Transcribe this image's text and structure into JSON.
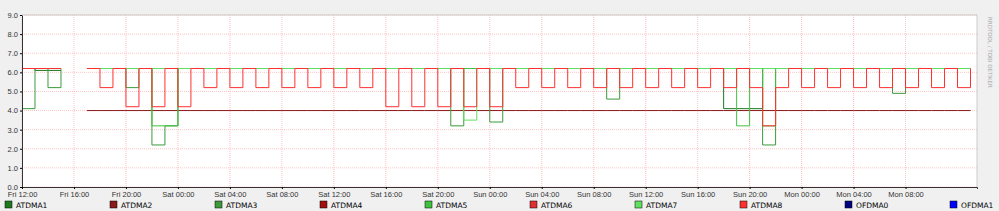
{
  "chart_data": {
    "type": "line",
    "line_style": "step",
    "grid": true,
    "legend": "bottom",
    "annotations": [
      "RRDTOOL / TOBI OETIKER"
    ],
    "x": [
      0,
      1,
      2,
      3,
      4,
      5,
      6,
      7,
      8,
      9,
      10,
      11,
      12,
      13,
      14,
      15,
      16,
      17,
      18,
      19,
      20,
      21,
      22,
      23,
      24,
      25,
      26,
      27,
      28,
      29,
      30,
      31,
      32,
      33,
      34,
      35,
      36,
      37,
      38,
      39,
      40,
      41,
      42,
      43,
      44,
      45,
      46,
      47,
      48,
      49,
      50,
      51,
      52,
      53,
      54,
      55,
      56,
      57,
      58,
      59,
      60,
      61,
      62,
      63,
      64,
      65,
      66,
      67,
      68,
      69,
      70,
      71,
      72,
      73
    ],
    "xlim": [
      0,
      73.5
    ],
    "xticks": [
      {
        "value": 0,
        "label": "Fri 12:00"
      },
      {
        "value": 4,
        "label": "Fri 16:00"
      },
      {
        "value": 8,
        "label": "Fri 20:00"
      },
      {
        "value": 12,
        "label": "Sat 00:00"
      },
      {
        "value": 16,
        "label": "Sat 04:00"
      },
      {
        "value": 20,
        "label": "Sat 08:00"
      },
      {
        "value": 24,
        "label": "Sat 12:00"
      },
      {
        "value": 28,
        "label": "Sat 16:00"
      },
      {
        "value": 32,
        "label": "Sat 20:00"
      },
      {
        "value": 36,
        "label": "Sun 00:00"
      },
      {
        "value": 40,
        "label": "Sun 04:00"
      },
      {
        "value": 44,
        "label": "Sun 08:00"
      },
      {
        "value": 48,
        "label": "Sun 12:00"
      },
      {
        "value": 52,
        "label": "Sun 16:00"
      },
      {
        "value": 56,
        "label": "Sun 20:00"
      },
      {
        "value": 60,
        "label": "Mon 00:00"
      },
      {
        "value": 64,
        "label": "Mon 04:00"
      },
      {
        "value": 68,
        "label": "Mon 08:00"
      }
    ],
    "ylim": [
      0,
      9
    ],
    "yticks": [
      {
        "value": 0,
        "label": "0.0"
      },
      {
        "value": 1,
        "label": "1.0"
      },
      {
        "value": 2,
        "label": "2.0"
      },
      {
        "value": 3,
        "label": "3.0"
      },
      {
        "value": 4,
        "label": "4.0"
      },
      {
        "value": 5,
        "label": "5.0"
      },
      {
        "value": 6,
        "label": "6.0"
      },
      {
        "value": 7,
        "label": "7.0"
      },
      {
        "value": 8,
        "label": "8.0"
      },
      {
        "value": 9,
        "label": "9.0"
      }
    ],
    "series": [
      {
        "name": "ATDMA1",
        "color": "#1f7a1f",
        "values": [
          6.2,
          6.1,
          6.1,
          6.1,
          null,
          6.2,
          6.2,
          6.2,
          6.2,
          6.2,
          6.2,
          6.2,
          6.2,
          6.2,
          6.2,
          6.2,
          6.2,
          6.2,
          6.2,
          6.2,
          6.2,
          6.2,
          6.2,
          6.2,
          6.2,
          6.2,
          6.2,
          6.2,
          6.2,
          6.2,
          6.2,
          6.2,
          6.2,
          6.2,
          6.2,
          6.2,
          6.2,
          6.2,
          6.2,
          6.2,
          6.2,
          6.2,
          6.2,
          6.2,
          6.2,
          6.2,
          6.2,
          6.2,
          6.2,
          6.2,
          6.2,
          6.2,
          6.2,
          6.2,
          4.1,
          4.1,
          4.1,
          6.2,
          6.2,
          6.2,
          6.2,
          6.2,
          6.2,
          6.2,
          6.2,
          6.2,
          6.2,
          6.2,
          6.2,
          6.2,
          6.2,
          6.2,
          6.2,
          6.2
        ]
      },
      {
        "name": "ATDMA2",
        "color": "#8b1a1a",
        "values": [
          6.2,
          6.2,
          6.2,
          6.2,
          null,
          4.0,
          4.0,
          4.0,
          4.0,
          4.0,
          4.0,
          4.0,
          4.0,
          4.0,
          4.0,
          4.0,
          4.0,
          4.0,
          4.0,
          4.0,
          4.0,
          4.0,
          4.0,
          4.0,
          4.0,
          4.0,
          4.0,
          4.0,
          4.0,
          4.0,
          4.0,
          4.0,
          4.0,
          4.0,
          4.0,
          4.0,
          4.0,
          4.0,
          4.0,
          4.0,
          4.0,
          4.0,
          4.0,
          4.0,
          4.0,
          4.0,
          4.0,
          4.0,
          4.0,
          4.0,
          4.0,
          4.0,
          4.0,
          4.0,
          4.0,
          4.0,
          4.0,
          4.0,
          4.0,
          4.0,
          4.0,
          4.0,
          4.0,
          4.0,
          4.0,
          4.0,
          4.0,
          4.0,
          4.0,
          4.0,
          4.0,
          4.0,
          4.0,
          4.0
        ]
      },
      {
        "name": "ATDMA3",
        "color": "#3c9a3c",
        "values": [
          4.1,
          6.2,
          5.2,
          6.2,
          null,
          6.2,
          6.2,
          6.2,
          5.2,
          6.2,
          2.2,
          3.2,
          6.2,
          6.2,
          6.2,
          6.2,
          6.2,
          6.2,
          6.2,
          6.2,
          6.2,
          6.2,
          6.2,
          6.2,
          6.2,
          6.2,
          6.2,
          6.2,
          6.2,
          6.2,
          6.2,
          6.2,
          6.2,
          3.2,
          6.2,
          6.2,
          3.4,
          6.2,
          6.2,
          6.2,
          6.2,
          6.2,
          6.2,
          6.2,
          6.2,
          4.6,
          6.2,
          6.2,
          6.2,
          6.2,
          6.2,
          6.2,
          6.2,
          6.2,
          6.2,
          6.2,
          6.2,
          2.2,
          6.2,
          6.2,
          6.2,
          6.2,
          6.2,
          6.2,
          6.2,
          6.2,
          6.2,
          4.9,
          6.2,
          6.2,
          6.2,
          6.2,
          6.2,
          6.2
        ]
      },
      {
        "name": "ATDMA4",
        "color": "#a01010",
        "values": [
          null,
          null,
          null,
          null,
          null,
          null,
          null,
          null,
          null,
          null,
          null,
          null,
          null,
          null,
          null,
          null,
          null,
          null,
          null,
          null,
          null,
          null,
          null,
          null,
          null,
          null,
          null,
          null,
          null,
          null,
          null,
          null,
          null,
          null,
          null,
          null,
          null,
          null,
          null,
          null,
          null,
          null,
          null,
          null,
          null,
          null,
          null,
          null,
          null,
          null,
          null,
          null,
          null,
          null,
          null,
          null,
          null,
          null,
          null,
          null,
          null,
          null,
          null,
          null,
          null,
          null,
          null,
          null,
          null,
          null,
          null,
          null,
          null,
          null
        ]
      },
      {
        "name": "ATDMA5",
        "color": "#40c040",
        "values": [
          6.2,
          6.2,
          6.2,
          6.2,
          null,
          6.2,
          6.2,
          6.2,
          6.2,
          6.2,
          3.2,
          3.2,
          6.2,
          6.2,
          6.2,
          6.2,
          6.2,
          6.2,
          6.2,
          6.2,
          6.2,
          6.2,
          6.2,
          6.2,
          6.2,
          6.2,
          6.2,
          6.2,
          6.2,
          6.2,
          6.2,
          6.2,
          6.2,
          6.2,
          6.2,
          6.2,
          6.2,
          6.2,
          6.2,
          6.2,
          6.2,
          6.2,
          6.2,
          6.2,
          6.2,
          6.2,
          6.2,
          6.2,
          6.2,
          6.2,
          6.2,
          6.2,
          6.2,
          6.2,
          6.2,
          3.2,
          6.2,
          3.2,
          6.2,
          6.2,
          6.2,
          6.2,
          6.2,
          6.2,
          6.2,
          6.2,
          6.2,
          6.2,
          6.2,
          6.2,
          6.2,
          6.2,
          6.2,
          6.2
        ]
      },
      {
        "name": "ATDMA6",
        "color": "#e03030",
        "values": [
          null,
          null,
          null,
          null,
          null,
          null,
          null,
          null,
          null,
          null,
          null,
          null,
          null,
          null,
          null,
          null,
          null,
          null,
          null,
          null,
          null,
          null,
          null,
          null,
          null,
          null,
          null,
          null,
          null,
          null,
          null,
          null,
          null,
          null,
          null,
          null,
          null,
          null,
          null,
          null,
          null,
          null,
          null,
          null,
          null,
          null,
          null,
          null,
          null,
          null,
          null,
          null,
          null,
          null,
          null,
          null,
          null,
          null,
          null,
          null,
          null,
          null,
          null,
          null,
          null,
          null,
          null,
          null,
          null,
          null,
          null,
          null,
          null,
          null
        ]
      },
      {
        "name": "ATDMA7",
        "color": "#60e060",
        "values": [
          6.2,
          6.2,
          6.2,
          6.2,
          null,
          6.2,
          6.2,
          6.2,
          6.2,
          6.2,
          6.2,
          6.2,
          6.2,
          6.2,
          6.2,
          6.2,
          6.2,
          6.2,
          6.2,
          6.2,
          6.2,
          6.2,
          6.2,
          6.2,
          6.2,
          6.2,
          6.2,
          6.2,
          6.2,
          6.2,
          6.2,
          6.2,
          6.2,
          6.2,
          3.5,
          6.2,
          6.2,
          6.2,
          6.2,
          6.2,
          6.2,
          6.2,
          6.2,
          6.2,
          6.2,
          6.2,
          6.2,
          6.2,
          6.2,
          6.2,
          6.2,
          6.2,
          6.2,
          6.2,
          6.2,
          6.2,
          6.2,
          6.2,
          6.2,
          6.2,
          6.2,
          6.2,
          6.2,
          6.2,
          6.2,
          6.2,
          6.2,
          6.2,
          6.2,
          6.2,
          6.2,
          6.2,
          6.2,
          6.2
        ]
      },
      {
        "name": "ATDMA8",
        "color": "#ff3030",
        "values": [
          6.2,
          6.2,
          6.2,
          6.2,
          null,
          6.2,
          5.2,
          6.2,
          4.2,
          6.2,
          4.2,
          6.2,
          4.2,
          6.2,
          5.2,
          6.2,
          5.2,
          6.2,
          5.2,
          6.2,
          5.2,
          6.2,
          5.2,
          6.2,
          5.2,
          6.2,
          5.2,
          6.2,
          4.2,
          6.2,
          4.2,
          6.2,
          4.2,
          6.2,
          4.2,
          6.2,
          4.2,
          6.2,
          5.2,
          6.2,
          5.2,
          6.2,
          5.2,
          6.2,
          5.2,
          6.2,
          5.2,
          6.2,
          5.2,
          6.2,
          5.2,
          6.2,
          5.2,
          6.2,
          5.2,
          6.2,
          5.2,
          3.2,
          5.2,
          6.2,
          5.2,
          6.2,
          5.2,
          6.2,
          5.2,
          6.2,
          5.2,
          6.2,
          5.2,
          6.2,
          5.2,
          6.2,
          5.2,
          6.2
        ]
      },
      {
        "name": "OFDMA0",
        "color": "#000080",
        "values": [
          null,
          null,
          null,
          null,
          null,
          null,
          null,
          null,
          null,
          null,
          null,
          null,
          null,
          null,
          null,
          null,
          null,
          null,
          null,
          null,
          null,
          null,
          null,
          null,
          null,
          null,
          null,
          null,
          null,
          null,
          null,
          null,
          null,
          null,
          null,
          null,
          null,
          null,
          null,
          null,
          null,
          null,
          null,
          null,
          null,
          null,
          null,
          null,
          null,
          null,
          null,
          null,
          null,
          null,
          null,
          null,
          null,
          null,
          null,
          null,
          null,
          null,
          null,
          null,
          null,
          null,
          null,
          null,
          null,
          null,
          null,
          null,
          null,
          null
        ]
      },
      {
        "name": "OFDMA1",
        "color": "#0000ff",
        "values": [
          null,
          null,
          null,
          null,
          null,
          null,
          null,
          null,
          null,
          null,
          null,
          null,
          null,
          null,
          null,
          null,
          null,
          null,
          null,
          null,
          null,
          null,
          null,
          null,
          null,
          null,
          null,
          null,
          null,
          null,
          null,
          null,
          null,
          null,
          null,
          null,
          null,
          null,
          null,
          null,
          null,
          null,
          null,
          null,
          null,
          null,
          null,
          null,
          null,
          null,
          null,
          null,
          null,
          null,
          null,
          null,
          null,
          null,
          null,
          null,
          null,
          null,
          null,
          null,
          null,
          null,
          null,
          null,
          null,
          null,
          null,
          null,
          null,
          null
        ]
      }
    ]
  }
}
